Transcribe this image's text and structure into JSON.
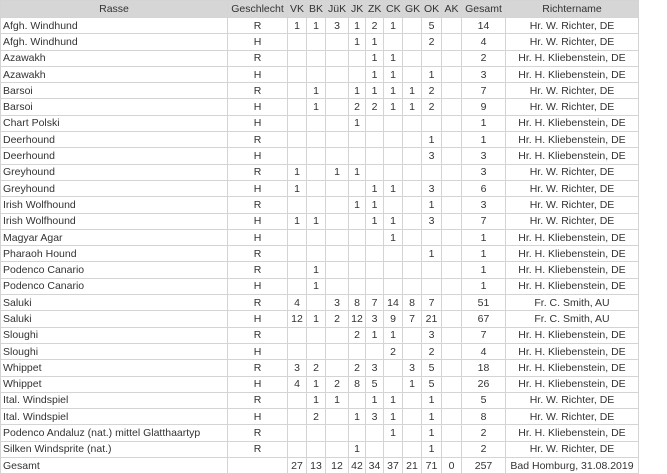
{
  "headers": [
    "Rasse",
    "Geschlecht",
    "VK",
    "BK",
    "JüK",
    "JK",
    "ZK",
    "CK",
    "GK",
    "OK",
    "AK",
    "Gesamt",
    "Richtername"
  ],
  "rows": [
    [
      "Afgh. Windhund",
      "R",
      "1",
      "1",
      "3",
      "1",
      "2",
      "1",
      "",
      "5",
      "",
      "14",
      "Hr. W. Richter, DE"
    ],
    [
      "Afgh. Windhund",
      "H",
      "",
      "",
      "",
      "1",
      "1",
      "",
      "",
      "2",
      "",
      "4",
      "Hr. W. Richter, DE"
    ],
    [
      "Azawakh",
      "R",
      "",
      "",
      "",
      "",
      "1",
      "1",
      "",
      "",
      "",
      "2",
      "Hr. H. Kliebenstein, DE"
    ],
    [
      "Azawakh",
      "H",
      "",
      "",
      "",
      "",
      "1",
      "1",
      "",
      "1",
      "",
      "3",
      "Hr. H. Kliebenstein, DE"
    ],
    [
      "Barsoi",
      "R",
      "",
      "1",
      "",
      "1",
      "1",
      "1",
      "1",
      "2",
      "",
      "7",
      "Hr. W. Richter, DE"
    ],
    [
      "Barsoi",
      "H",
      "",
      "1",
      "",
      "2",
      "2",
      "1",
      "1",
      "2",
      "",
      "9",
      "Hr. W. Richter, DE"
    ],
    [
      "Chart Polski",
      "H",
      "",
      "",
      "",
      "1",
      "",
      "",
      "",
      "",
      "",
      "1",
      "Hr. H. Kliebenstein, DE"
    ],
    [
      "Deerhound",
      "R",
      "",
      "",
      "",
      "",
      "",
      "",
      "",
      "1",
      "",
      "1",
      "Hr. H. Kliebenstein, DE"
    ],
    [
      "Deerhound",
      "H",
      "",
      "",
      "",
      "",
      "",
      "",
      "",
      "3",
      "",
      "3",
      "Hr. H. Kliebenstein, DE"
    ],
    [
      "Greyhound",
      "R",
      "1",
      "",
      "1",
      "1",
      "",
      "",
      "",
      "",
      "",
      "3",
      "Hr. W. Richter, DE"
    ],
    [
      "Greyhound",
      "H",
      "1",
      "",
      "",
      "",
      "1",
      "1",
      "",
      "3",
      "",
      "6",
      "Hr. W. Richter, DE"
    ],
    [
      "Irish Wolfhound",
      "R",
      "",
      "",
      "",
      "1",
      "1",
      "",
      "",
      "1",
      "",
      "3",
      "Hr. W. Richter, DE"
    ],
    [
      "Irish Wolfhound",
      "H",
      "1",
      "1",
      "",
      "",
      "1",
      "1",
      "",
      "3",
      "",
      "7",
      "Hr. W. Richter, DE"
    ],
    [
      "Magyar Agar",
      "H",
      "",
      "",
      "",
      "",
      "",
      "1",
      "",
      "",
      "",
      "1",
      "Hr. H. Kliebenstein, DE"
    ],
    [
      "Pharaoh Hound",
      "R",
      "",
      "",
      "",
      "",
      "",
      "",
      "",
      "1",
      "",
      "1",
      "Hr. H. Kliebenstein, DE"
    ],
    [
      "Podenco Canario",
      "R",
      "",
      "1",
      "",
      "",
      "",
      "",
      "",
      "",
      "",
      "1",
      "Hr. H. Kliebenstein, DE"
    ],
    [
      "Podenco Canario",
      "H",
      "",
      "1",
      "",
      "",
      "",
      "",
      "",
      "",
      "",
      "1",
      "Hr. H. Kliebenstein, DE"
    ],
    [
      "Saluki",
      "R",
      "4",
      "",
      "3",
      "8",
      "7",
      "14",
      "8",
      "7",
      "",
      "51",
      "Fr. C. Smith, AU"
    ],
    [
      "Saluki",
      "H",
      "12",
      "1",
      "2",
      "12",
      "3",
      "9",
      "7",
      "21",
      "",
      "67",
      "Fr. C. Smith, AU"
    ],
    [
      "Sloughi",
      "R",
      "",
      "",
      "",
      "2",
      "1",
      "1",
      "",
      "3",
      "",
      "7",
      "Hr. H. Kliebenstein, DE"
    ],
    [
      "Sloughi",
      "H",
      "",
      "",
      "",
      "",
      "",
      "2",
      "",
      "2",
      "",
      "4",
      "Hr. H. Kliebenstein, DE"
    ],
    [
      "Whippet",
      "R",
      "3",
      "2",
      "",
      "2",
      "3",
      "",
      "3",
      "5",
      "",
      "18",
      "Hr. H. Kliebenstein, DE"
    ],
    [
      "Whippet",
      "H",
      "4",
      "1",
      "2",
      "8",
      "5",
      "",
      "1",
      "5",
      "",
      "26",
      "Hr. H. Kliebenstein, DE"
    ],
    [
      "Ital. Windspiel",
      "R",
      "",
      "1",
      "1",
      "",
      "1",
      "1",
      "",
      "1",
      "",
      "5",
      "Hr. W. Richter, DE"
    ],
    [
      "Ital. Windspiel",
      "H",
      "",
      "2",
      "",
      "1",
      "3",
      "1",
      "",
      "1",
      "",
      "8",
      "Hr. W. Richter, DE"
    ],
    [
      "Podenco Andaluz (nat.) mittel Glatthaartyp",
      "R",
      "",
      "",
      "",
      "",
      "",
      "1",
      "",
      "1",
      "",
      "2",
      "Hr. H. Kliebenstein, DE"
    ],
    [
      "Silken Windsprite (nat.)",
      "R",
      "",
      "",
      "",
      "1",
      "",
      "",
      "",
      "1",
      "",
      "2",
      "Hr. W. Richter, DE"
    ]
  ],
  "total": [
    "Gesamt",
    "",
    "27",
    "13",
    "12",
    "42",
    "34",
    "37",
    "21",
    "71",
    "0",
    "257",
    "Bad Homburg, 31.08.2019"
  ]
}
